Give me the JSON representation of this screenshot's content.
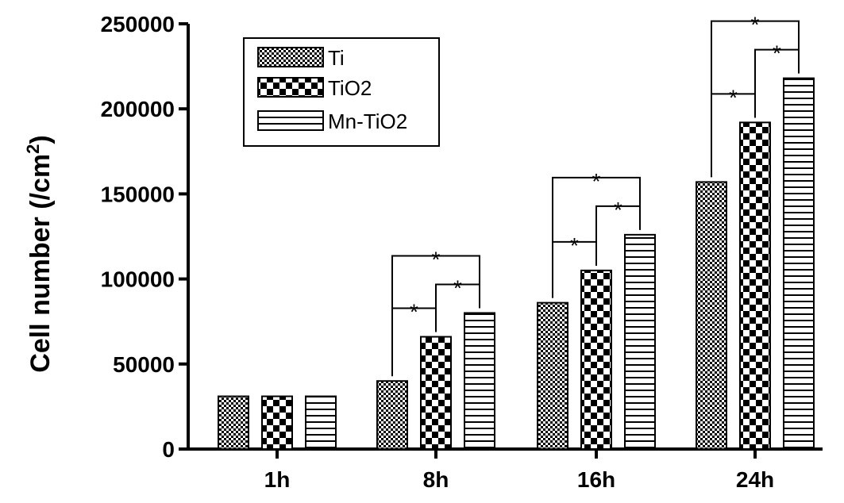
{
  "chart_data": {
    "type": "bar",
    "categories": [
      "1h",
      "8h",
      "16h",
      "24h"
    ],
    "series": [
      {
        "name": "Ti",
        "values": [
          31000,
          40000,
          86000,
          157000
        ],
        "pattern": "fine-check"
      },
      {
        "name": "TiO2",
        "values": [
          31000,
          66000,
          105000,
          192000
        ],
        "pattern": "coarse-check"
      },
      {
        "name": "Mn-TiO2",
        "values": [
          31000,
          80000,
          126000,
          218000
        ],
        "pattern": "horizontal-lines"
      }
    ],
    "ylabel_main": "Cell number (/cm",
    "ylabel_sup": "2",
    "ylabel_end": ")",
    "ylim": [
      0,
      250000
    ],
    "yticks": [
      "0",
      "50000",
      "100000",
      "150000",
      "200000",
      "250000"
    ],
    "legend_position": "top-left",
    "grid": false,
    "significance_marker": "*",
    "significance": [
      {
        "category": "8h",
        "from": "Ti",
        "to": "TiO2"
      },
      {
        "category": "8h",
        "from": "TiO2",
        "to": "Mn-TiO2"
      },
      {
        "category": "8h",
        "from": "Ti",
        "to": "Mn-TiO2"
      },
      {
        "category": "16h",
        "from": "Ti",
        "to": "TiO2"
      },
      {
        "category": "16h",
        "from": "TiO2",
        "to": "Mn-TiO2"
      },
      {
        "category": "16h",
        "from": "Ti",
        "to": "Mn-TiO2"
      },
      {
        "category": "24h",
        "from": "Ti",
        "to": "TiO2"
      },
      {
        "category": "24h",
        "from": "TiO2",
        "to": "Mn-TiO2"
      },
      {
        "category": "24h",
        "from": "Ti",
        "to": "Mn-TiO2"
      }
    ]
  }
}
